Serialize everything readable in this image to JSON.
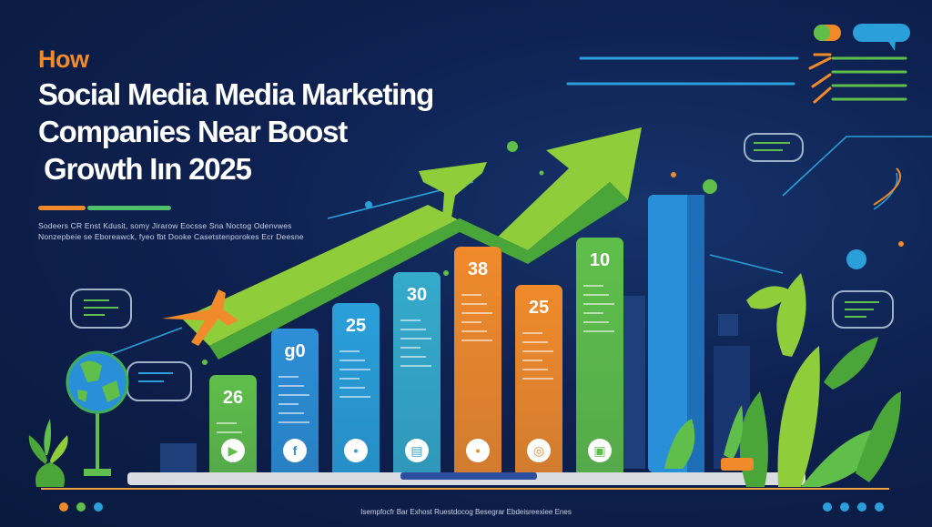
{
  "title": {
    "how": "How",
    "line1": "Social Media Media Marketing",
    "line2": "Companies Near Boost",
    "line3": "Growth Iın 2025"
  },
  "subtitle": {
    "line1": "Sodeers CR Enst Kdusit, somy Jirarow Eocsse Sna Noctog Odenvwes",
    "line2": "Nonzepbeie se Eboreawck, fyeo fbt Dooke Casetstenporokes Ecr Deesne"
  },
  "bars": [
    {
      "value": "26",
      "icon": "play-icon",
      "color": "#5fbf4a"
    },
    {
      "value": "g0",
      "icon": "facebook-icon",
      "color": "#2d8fd6"
    },
    {
      "value": "25",
      "icon": "twitter-icon",
      "color": "#2a9fd9"
    },
    {
      "value": "30",
      "icon": "chat-icon",
      "color": "#35aacb"
    },
    {
      "value": "38",
      "icon": "twitter-icon",
      "color": "#f08a2b"
    },
    {
      "value": "25",
      "icon": "instagram-icon",
      "color": "#f08a2b"
    },
    {
      "value": "10",
      "icon": "message-icon",
      "color": "#5fbf4a"
    }
  ],
  "footer": "Isempfocfr Bar Exhost Ruestdocog Besegrar Ebdeisreexiee Enes",
  "colors": {
    "orange": "#f08a2b",
    "green": "#5fbf4a",
    "blue": "#2d8fd6",
    "background": "#0e2150"
  }
}
